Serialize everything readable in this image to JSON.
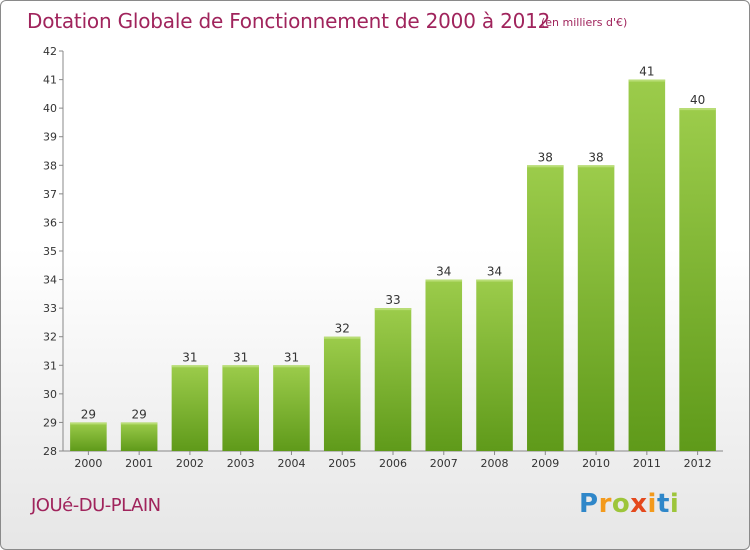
{
  "header": {
    "title": "Dotation Globale de Fonctionnement de 2000 à 2012",
    "unit": "(en milliers d'€)"
  },
  "footer": {
    "place": "JOUé-DU-PLAIN",
    "logo": {
      "letters": [
        "P",
        "r",
        "o",
        "x",
        "i",
        "t",
        "i"
      ],
      "colors": [
        "#2f87c9",
        "#f39a1c",
        "#9dc53a",
        "#e4481c",
        "#f39a1c",
        "#2f87c9",
        "#9dc53a"
      ]
    }
  },
  "chart_data": {
    "type": "bar",
    "categories": [
      "2000",
      "2001",
      "2002",
      "2003",
      "2004",
      "2005",
      "2006",
      "2007",
      "2008",
      "2009",
      "2010",
      "2011",
      "2012"
    ],
    "values": [
      29,
      29,
      31,
      31,
      31,
      32,
      33,
      34,
      34,
      38,
      38,
      41,
      40
    ],
    "data_labels": [
      "29",
      "29",
      "31",
      "31",
      "31",
      "32",
      "33",
      "34",
      "34",
      "38",
      "38",
      "41",
      "40"
    ],
    "ylim": [
      28,
      42
    ],
    "yticks": [
      "28",
      "29",
      "30",
      "31",
      "32",
      "33",
      "34",
      "35",
      "36",
      "37",
      "38",
      "39",
      "40",
      "41",
      "42"
    ],
    "grid": false,
    "colors": {
      "bar_top": "#9ccc4b",
      "bar_bottom": "#5f9a1a",
      "axis": "#888888"
    }
  }
}
